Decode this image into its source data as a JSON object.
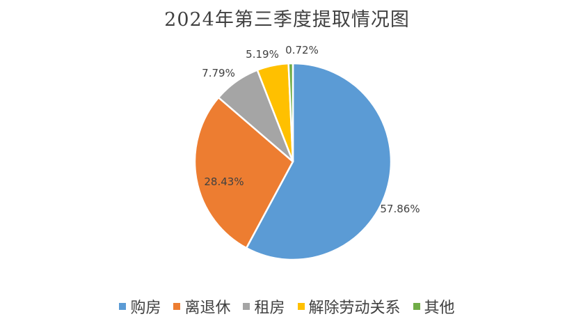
{
  "chart_data": {
    "type": "pie",
    "title": "2024年第三季度提取情况图",
    "categories": [
      "购房",
      "离退休",
      "租房",
      "解除劳动关系",
      "其他"
    ],
    "values": [
      57.86,
      28.43,
      7.79,
      5.19,
      0.72
    ],
    "labels": [
      "57.86%",
      "28.43%",
      "7.79%",
      "5.19%",
      "0.72%"
    ],
    "colors": [
      "#5B9BD5",
      "#ED7D31",
      "#A5A5A5",
      "#FFC000",
      "#70AD47"
    ],
    "legend_position": "bottom"
  }
}
